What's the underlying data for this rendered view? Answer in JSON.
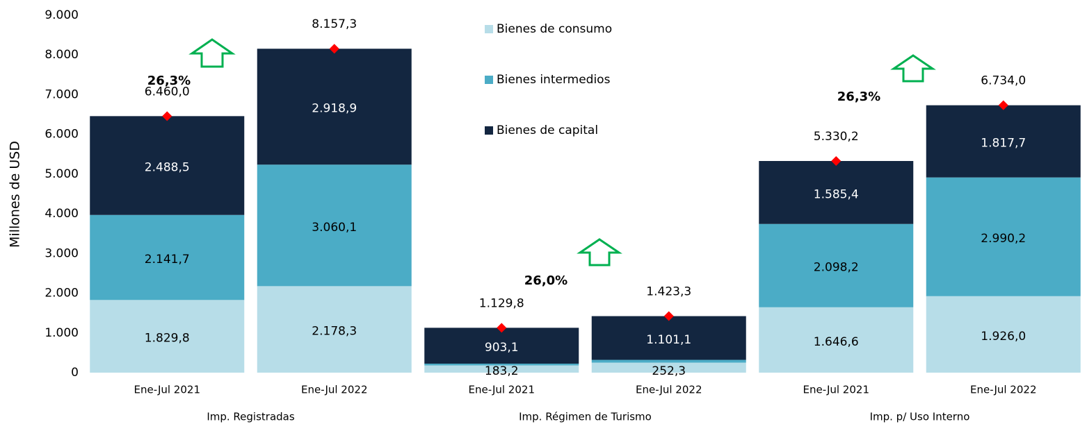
{
  "chart_data": {
    "type": "stacked_bar",
    "y_label": "Millones de USD",
    "categories": [
      "Ene-Jul 2021",
      "Ene-Jul 2022",
      "Ene-Jul 2021",
      "Ene-Jul 2022",
      "Ene-Jul 2021",
      "Ene-Jul 2022"
    ],
    "groups": [
      "Imp. Registradas",
      "Imp. Régimen de Turismo",
      "Imp. p/ Uso Interno"
    ],
    "ylim": [
      0,
      9000
    ],
    "yticks": [
      0,
      {
        "value": 1000,
        "label": "1.000"
      },
      {
        "value": 2000,
        "label": "2.000"
      },
      {
        "value": 3000,
        "label": "3.000"
      },
      {
        "value": 4000,
        "label": "4.000"
      },
      {
        "value": 5000,
        "label": "5.000"
      },
      {
        "value": 6000,
        "label": "6.000"
      },
      {
        "value": 7000,
        "label": "7.000"
      },
      {
        "value": 8000,
        "label": "8.000"
      },
      {
        "value": 9000,
        "label": "9.000"
      }
    ],
    "series": [
      {
        "name": "Bienes de consumo",
        "color": "#b7dde8",
        "values": [
          1829.8,
          2178.3,
          183.2,
          252.3,
          1646.6,
          1926.0
        ],
        "value_labels": [
          "1.829,8",
          "2.178,3",
          "183,2",
          "252,3",
          "1.646,6",
          "1.926,0"
        ]
      },
      {
        "name": "Bienes intermedios",
        "color": "#4bacc6",
        "values": [
          2141.7,
          3060.1,
          43.5,
          69.9,
          2098.2,
          2990.2
        ],
        "value_labels": [
          "2.141,7",
          "3.060,1",
          null,
          null,
          "2.098,2",
          "2.990,2"
        ]
      },
      {
        "name": "Bienes de capital",
        "color": "#132640",
        "values": [
          2488.5,
          2918.9,
          903.1,
          1101.1,
          1585.4,
          1817.7
        ],
        "value_labels": [
          "2.488,5",
          "2.918,9",
          "903,1",
          "1.101,1",
          "1.585,4",
          "1.817,7"
        ]
      }
    ],
    "totals": {
      "color": "#ff0000",
      "values": [
        6460.0,
        8157.3,
        1129.8,
        1423.3,
        5330.2,
        6734.0
      ],
      "value_labels": [
        "6.460,0",
        "8.157,3",
        "1.129,8",
        "1.423,3",
        "5.330,2",
        "6.734,0"
      ]
    },
    "annotations": [
      "26,3%",
      "26,0%",
      "26,3%"
    ]
  }
}
